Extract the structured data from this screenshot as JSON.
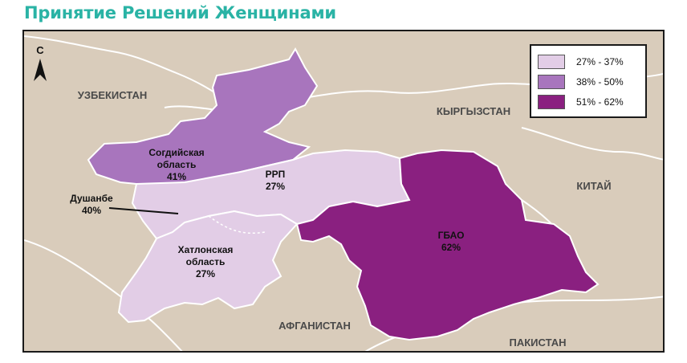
{
  "title": "Принятие Решений Женщинами",
  "north_label": "С",
  "colors": {
    "low": "#e2cde6",
    "mid": "#a875bd",
    "high": "#8a2080",
    "land": "#d9ccbb",
    "border": "#ffffff"
  },
  "legend": [
    {
      "label": "27% - 37%",
      "color": "#e2cde6"
    },
    {
      "label": "38% - 50%",
      "color": "#a875bd"
    },
    {
      "label": "51% - 62%",
      "color": "#8a2080"
    }
  ],
  "countries": {
    "uzbekistan": "УЗБЕКИСТАН",
    "kyrgyzstan": "КЫРГЫЗСТАН",
    "china": "КИТАЙ",
    "afghanistan": "АФГАНИСТАН",
    "pakistan": "ПАКИСТАН"
  },
  "regions": {
    "sogd": {
      "name_line1": "Согдийская",
      "name_line2": "область",
      "value": "41%"
    },
    "rrp": {
      "name": "РРП",
      "value": "27%"
    },
    "dushanbe": {
      "name": "Душанбе",
      "value": "40%"
    },
    "khatlon": {
      "name_line1": "Хатлонская",
      "name_line2": "область",
      "value": "27%"
    },
    "gbao": {
      "name": "ГБАО",
      "value": "62%"
    }
  }
}
